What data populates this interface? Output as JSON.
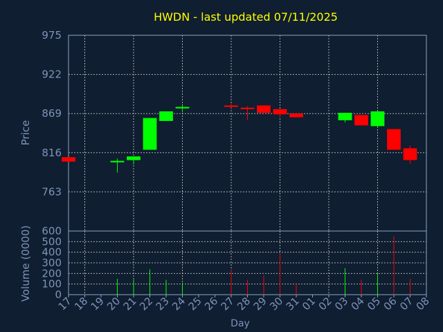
{
  "chart_data": {
    "type": "candlestick",
    "title": "HWDN - last updated 07/11/2025",
    "xlabel": "Day",
    "ylabel": "Price",
    "volume_label": "Volume (0000)",
    "x_ticks": [
      "17",
      "18",
      "19",
      "20",
      "21",
      "22",
      "23",
      "24",
      "25",
      "26",
      "27",
      "28",
      "29",
      "30",
      "31",
      "01",
      "02",
      "03",
      "04",
      "05",
      "06",
      "07",
      "08"
    ],
    "price_ticks": [
      975,
      922,
      869,
      816,
      763
    ],
    "price_ylim": [
      710,
      975
    ],
    "volume_ticks": [
      0,
      100,
      200,
      300,
      400,
      500
    ],
    "volume_bottom_label": "600",
    "volume_ylim": [
      0,
      600
    ],
    "colors": {
      "background": "#0f1e30",
      "up": "#00ff00",
      "down": "#ff0000",
      "title": "#ffff00",
      "axis_text": "#7d93b8",
      "grid": "#c8c8c8"
    },
    "candles": [
      {
        "day": "17",
        "open": 810,
        "close": 804,
        "high": 810,
        "low": 804,
        "volume": 0
      },
      {
        "day": "20",
        "open": 803,
        "close": 805,
        "high": 808,
        "low": 789,
        "volume": 150
      },
      {
        "day": "21",
        "open": 806,
        "close": 811,
        "high": 811,
        "low": 800,
        "volume": 140
      },
      {
        "day": "22",
        "open": 820,
        "close": 863,
        "high": 863,
        "low": 820,
        "volume": 240
      },
      {
        "day": "23",
        "open": 859,
        "close": 872,
        "high": 872,
        "low": 859,
        "volume": 140
      },
      {
        "day": "24",
        "open": 876,
        "close": 878,
        "high": 882,
        "low": 871,
        "volume": 110
      },
      {
        "day": "27",
        "open": 880,
        "close": 878,
        "high": 883,
        "low": 877,
        "volume": 240
      },
      {
        "day": "28",
        "open": 877,
        "close": 875,
        "high": 879,
        "low": 860,
        "volume": 140
      },
      {
        "day": "29",
        "open": 880,
        "close": 870,
        "high": 880,
        "low": 870,
        "volume": 180
      },
      {
        "day": "30",
        "open": 875,
        "close": 868,
        "high": 875,
        "low": 865,
        "volume": 390
      },
      {
        "day": "31",
        "open": 869,
        "close": 864,
        "high": 870,
        "low": 864,
        "volume": 110
      },
      {
        "day": "03",
        "open": 860,
        "close": 870,
        "high": 870,
        "low": 857,
        "volume": 250
      },
      {
        "day": "04",
        "open": 867,
        "close": 853,
        "high": 867,
        "low": 853,
        "volume": 140
      },
      {
        "day": "05",
        "open": 852,
        "close": 872,
        "high": 872,
        "low": 850,
        "volume": 200
      },
      {
        "day": "06",
        "open": 848,
        "close": 820,
        "high": 848,
        "low": 820,
        "volume": 550
      },
      {
        "day": "07",
        "open": 822,
        "close": 806,
        "high": 826,
        "low": 801,
        "volume": 150
      }
    ]
  }
}
